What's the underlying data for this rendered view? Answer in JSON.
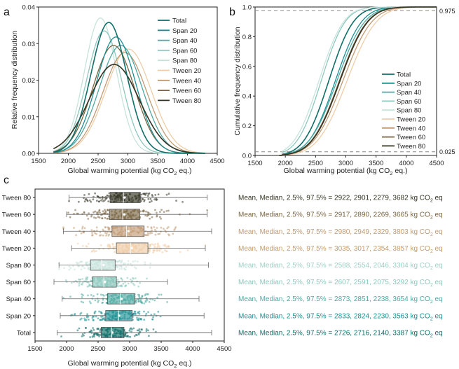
{
  "panels": {
    "a": "a",
    "b": "b",
    "c": "c"
  },
  "series_names": [
    "Total",
    "Span 20",
    "Span 40",
    "Span 60",
    "Span 80",
    "Tween 20",
    "Tween 40",
    "Tween 60",
    "Tween 80"
  ],
  "colors": {
    "Total": "#0f6e68",
    "Span 20": "#1c8f92",
    "Span 40": "#4ea9a3",
    "Span 60": "#8cc8bd",
    "Span 80": "#c8e3dc",
    "Tween 20": "#f0cda8",
    "Tween 40": "#c19a74",
    "Tween 60": "#7a6542",
    "Tween 80": "#333322"
  },
  "chart_data": [
    {
      "type": "line",
      "panel": "a",
      "xlabel_prefix": "Global warming potential (kg CO",
      "xlabel_sub": "2",
      "xlabel_suffix": " eq.)",
      "ylabel": "Relative frequency distribution",
      "xlim": [
        1500,
        4500
      ],
      "ylim": [
        0,
        0.04
      ],
      "xticks": [
        1500,
        2000,
        2500,
        3000,
        3500,
        4000,
        4500
      ],
      "yticks": [
        0.0,
        0.01,
        0.02,
        0.03,
        0.04
      ],
      "ytick_labels": [
        "0.00",
        "0.01",
        "0.02",
        "0.03",
        "0.04"
      ],
      "support": [
        1750,
        4300
      ],
      "series": [
        {
          "name": "Total",
          "peak_x": 2680,
          "peak_y": 0.0358,
          "sigma": 300
        },
        {
          "name": "Span 20",
          "peak_x": 2800,
          "peak_y": 0.0318,
          "sigma": 330
        },
        {
          "name": "Span 40",
          "peak_x": 2880,
          "peak_y": 0.0295,
          "sigma": 360
        },
        {
          "name": "Span 60",
          "peak_x": 2600,
          "peak_y": 0.0335,
          "sigma": 290
        },
        {
          "name": "Span 80",
          "peak_x": 2540,
          "peak_y": 0.037,
          "sigma": 270
        },
        {
          "name": "Tween 20",
          "peak_x": 3010,
          "peak_y": 0.0285,
          "sigma": 380
        },
        {
          "name": "Tween 40",
          "peak_x": 2950,
          "peak_y": 0.0275,
          "sigma": 370
        },
        {
          "name": "Tween 60",
          "peak_x": 2760,
          "peak_y": 0.0295,
          "sigma": 350
        },
        {
          "name": "Tween 80",
          "peak_x": 2770,
          "peak_y": 0.0243,
          "sigma": 420
        }
      ]
    },
    {
      "type": "line",
      "panel": "b",
      "xlabel_prefix": "Global warming potential (kg CO",
      "xlabel_sub": "2",
      "xlabel_suffix": " eq.)",
      "ylabel": "Cumulative frequency distribution",
      "xlim": [
        1500,
        4500
      ],
      "ylim": [
        0,
        1.0
      ],
      "xticks": [
        1500,
        2000,
        2500,
        3000,
        3500,
        4000,
        4500
      ],
      "yticks": [
        0.0,
        0.2,
        0.4,
        0.6,
        0.8,
        1.0
      ],
      "ytick_labels": [
        "0.0",
        "0.2",
        "0.4",
        "0.6",
        "0.8",
        "1.0"
      ],
      "reference_lines": [
        0.975,
        0.025
      ],
      "reference_labels": [
        "0.975",
        "0.025"
      ],
      "series": [
        {
          "name": "Total",
          "median": 2716,
          "sigma": 320
        },
        {
          "name": "Span 20",
          "median": 2824,
          "sigma": 340
        },
        {
          "name": "Span 40",
          "median": 2851,
          "sigma": 360
        },
        {
          "name": "Span 60",
          "median": 2591,
          "sigma": 310
        },
        {
          "name": "Span 80",
          "median": 2554,
          "sigma": 320
        },
        {
          "name": "Tween 20",
          "median": 3017,
          "sigma": 380
        },
        {
          "name": "Tween 40",
          "median": 2949,
          "sigma": 375
        },
        {
          "name": "Tween 60",
          "median": 2890,
          "sigma": 360
        },
        {
          "name": "Tween 80",
          "median": 2901,
          "sigma": 360
        }
      ]
    },
    {
      "type": "box",
      "panel": "c",
      "xlabel_prefix": "Global warming potential (kg CO",
      "xlabel_sub": "2",
      "xlabel_suffix": " eq.)",
      "xlim": [
        1500,
        4500
      ],
      "xticks": [
        1500,
        2000,
        2500,
        3000,
        3500,
        4000,
        4500
      ],
      "stat_prefix": "Mean, Median, 2.5%, 97.5% = ",
      "unit_prefix": " kg CO",
      "unit_sub": "2",
      "unit_suffix": " eq",
      "categories": [
        "Tween 80",
        "Tween 60",
        "Tween 40",
        "Tween 20",
        "Span 80",
        "Span 60",
        "Span 40",
        "Span 20",
        "Total"
      ],
      "boxes": [
        {
          "name": "Tween 80",
          "mean": 2922,
          "median": 2901,
          "p2_5": 2279,
          "p97_5": 3682,
          "q1": 2690,
          "q3": 3170,
          "min": 2040,
          "max": 4230,
          "stat_text": "2922, 2901, 2279, 3682"
        },
        {
          "name": "Tween 60",
          "mean": 2917,
          "median": 2890,
          "p2_5": 2269,
          "p97_5": 3665,
          "q1": 2680,
          "q3": 3160,
          "min": 2000,
          "max": 4230,
          "stat_text": "2917, 2890, 2269, 3665"
        },
        {
          "name": "Tween 40",
          "mean": 2980,
          "median": 2949,
          "p2_5": 2329,
          "p97_5": 3803,
          "q1": 2720,
          "q3": 3230,
          "min": 1950,
          "max": 4300,
          "stat_text": "2980, 2949, 2329, 3803"
        },
        {
          "name": "Tween 20",
          "mean": 3035,
          "median": 3017,
          "p2_5": 2354,
          "p97_5": 3857,
          "q1": 2790,
          "q3": 3290,
          "min": 2080,
          "max": 4200,
          "stat_text": "3035, 3017, 2354, 3857"
        },
        {
          "name": "Span 80",
          "mean": 2588,
          "median": 2554,
          "p2_5": 2046,
          "p97_5": 3304,
          "q1": 2380,
          "q3": 2770,
          "min": 1880,
          "max": 4250,
          "stat_text": "2588, 2554, 2046, 3304"
        },
        {
          "name": "Span 60",
          "mean": 2607,
          "median": 2591,
          "p2_5": 2075,
          "p97_5": 3292,
          "q1": 2410,
          "q3": 2790,
          "min": 1800,
          "max": 3600,
          "stat_text": "2607, 2591, 2075, 3292"
        },
        {
          "name": "Span 40",
          "mean": 2873,
          "median": 2851,
          "p2_5": 2238,
          "p97_5": 3654,
          "q1": 2650,
          "q3": 3080,
          "min": 1930,
          "max": 4100,
          "stat_text": "2873, 2851, 2238, 3654"
        },
        {
          "name": "Span 20",
          "mean": 2833,
          "median": 2824,
          "p2_5": 2230,
          "p97_5": 3563,
          "q1": 2620,
          "q3": 3040,
          "min": 1900,
          "max": 4180,
          "stat_text": "2833, 2824, 2230, 3563"
        },
        {
          "name": "Total",
          "mean": 2726,
          "median": 2716,
          "p2_5": 2140,
          "p97_5": 3387,
          "q1": 2550,
          "q3": 2910,
          "min": 1850,
          "max": 4300,
          "stat_text": "2726, 2716, 2140, 3387"
        }
      ]
    }
  ]
}
